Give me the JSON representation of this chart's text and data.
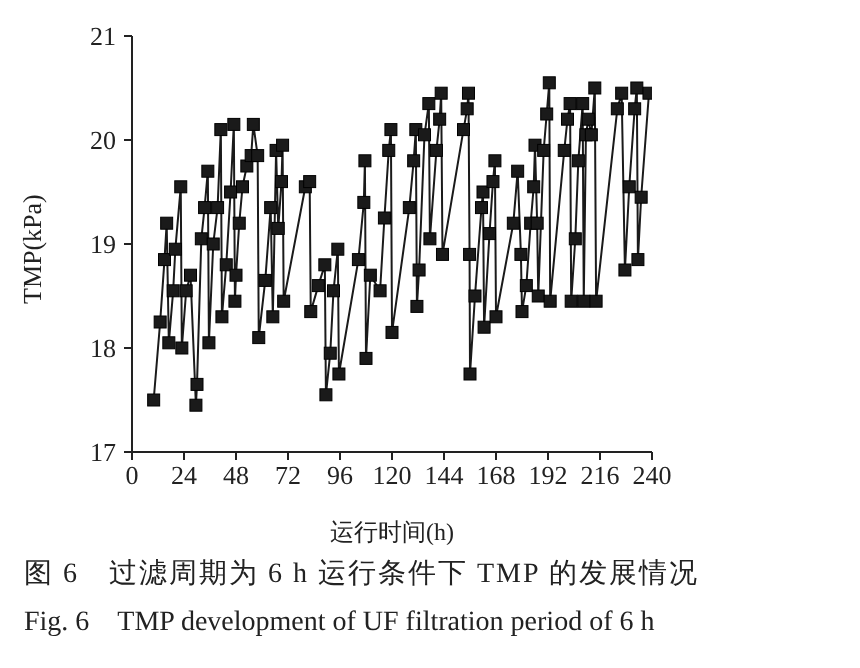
{
  "chart_data": {
    "type": "line",
    "xlabel": "运行时间(h)",
    "ylabel": "TMP(kPa)",
    "marker": "square",
    "line_style": "solid",
    "grid": false,
    "legend": false,
    "xlim": [
      0,
      240
    ],
    "xticks": [
      0,
      24,
      48,
      72,
      96,
      120,
      144,
      168,
      192,
      216,
      240
    ],
    "ylim": [
      17,
      21
    ],
    "yticks": [
      17,
      18,
      19,
      20,
      21
    ],
    "annotations": [
      "图 6　过滤周期为 6 h 运行条件下 TMP 的发展情况",
      "Fig. 6　TMP development of UF filtration period of 6 h"
    ],
    "series": [
      {
        "color": "#1a1a1a",
        "x": [
          10,
          13,
          15,
          16,
          17,
          19,
          20,
          22.5,
          23,
          25,
          27,
          29.5,
          30,
          32,
          33.5,
          35,
          35.5,
          37.5,
          39.5,
          41,
          41.5,
          43.5,
          45.5,
          47,
          47.5,
          48,
          49.5,
          51,
          53,
          55,
          56,
          58,
          58.5,
          61.5,
          64,
          65,
          66.5,
          67.5,
          69,
          69.5,
          70,
          80,
          82,
          82.5,
          86,
          89,
          89.5,
          91.5,
          93,
          95,
          95.5,
          104.5,
          107,
          107.5,
          108,
          110,
          114.5,
          116.5,
          118.5,
          119.5,
          120,
          128,
          130,
          131,
          131.5,
          132.5,
          135,
          137,
          137.5,
          140.5,
          142,
          142.7,
          143.3,
          153,
          154.7,
          155.3,
          155.8,
          156,
          158.3,
          161.3,
          162,
          162.5,
          165,
          166.6,
          167.5,
          168,
          176,
          178,
          179.5,
          180,
          182,
          184,
          185.4,
          186,
          187,
          187.5,
          190,
          191.4,
          192.6,
          193,
          199.5,
          201,
          202.2,
          202.7,
          204.6,
          206,
          208,
          208.5,
          209.5,
          210.6,
          212,
          213.6,
          214.2,
          224,
          226,
          227.5,
          229.5,
          232,
          233,
          233.5,
          235,
          238.6
        ],
        "values": [
          17.5,
          18.25,
          18.85,
          19.2,
          18.05,
          18.55,
          18.95,
          19.55,
          18.0,
          18.55,
          18.7,
          17.45,
          17.65,
          19.05,
          19.35,
          19.7,
          18.05,
          19.0,
          19.35,
          20.1,
          18.3,
          18.8,
          19.5,
          20.15,
          18.45,
          18.7,
          19.2,
          19.55,
          19.75,
          19.85,
          20.15,
          19.85,
          18.1,
          18.65,
          19.35,
          18.3,
          19.9,
          19.15,
          19.6,
          19.95,
          18.45,
          19.55,
          19.6,
          18.35,
          18.6,
          18.8,
          17.55,
          17.95,
          18.55,
          18.95,
          17.75,
          18.85,
          19.4,
          19.8,
          17.9,
          18.7,
          18.55,
          19.25,
          19.9,
          20.1,
          18.15,
          19.35,
          19.8,
          20.1,
          18.4,
          18.75,
          20.05,
          20.35,
          19.05,
          19.9,
          20.2,
          20.45,
          18.9,
          20.1,
          20.3,
          20.45,
          18.9,
          17.75,
          18.5,
          19.35,
          19.5,
          18.2,
          19.1,
          19.6,
          19.8,
          18.3,
          19.2,
          19.7,
          18.9,
          18.35,
          18.6,
          19.2,
          19.55,
          19.95,
          19.2,
          18.5,
          19.9,
          20.25,
          20.55,
          18.45,
          19.9,
          20.2,
          20.35,
          18.45,
          19.05,
          19.8,
          20.35,
          18.45,
          20.05,
          20.2,
          20.05,
          20.5,
          18.45,
          20.3,
          20.45,
          18.75,
          19.55,
          20.3,
          20.5,
          18.85,
          19.45,
          20.45
        ]
      }
    ]
  }
}
